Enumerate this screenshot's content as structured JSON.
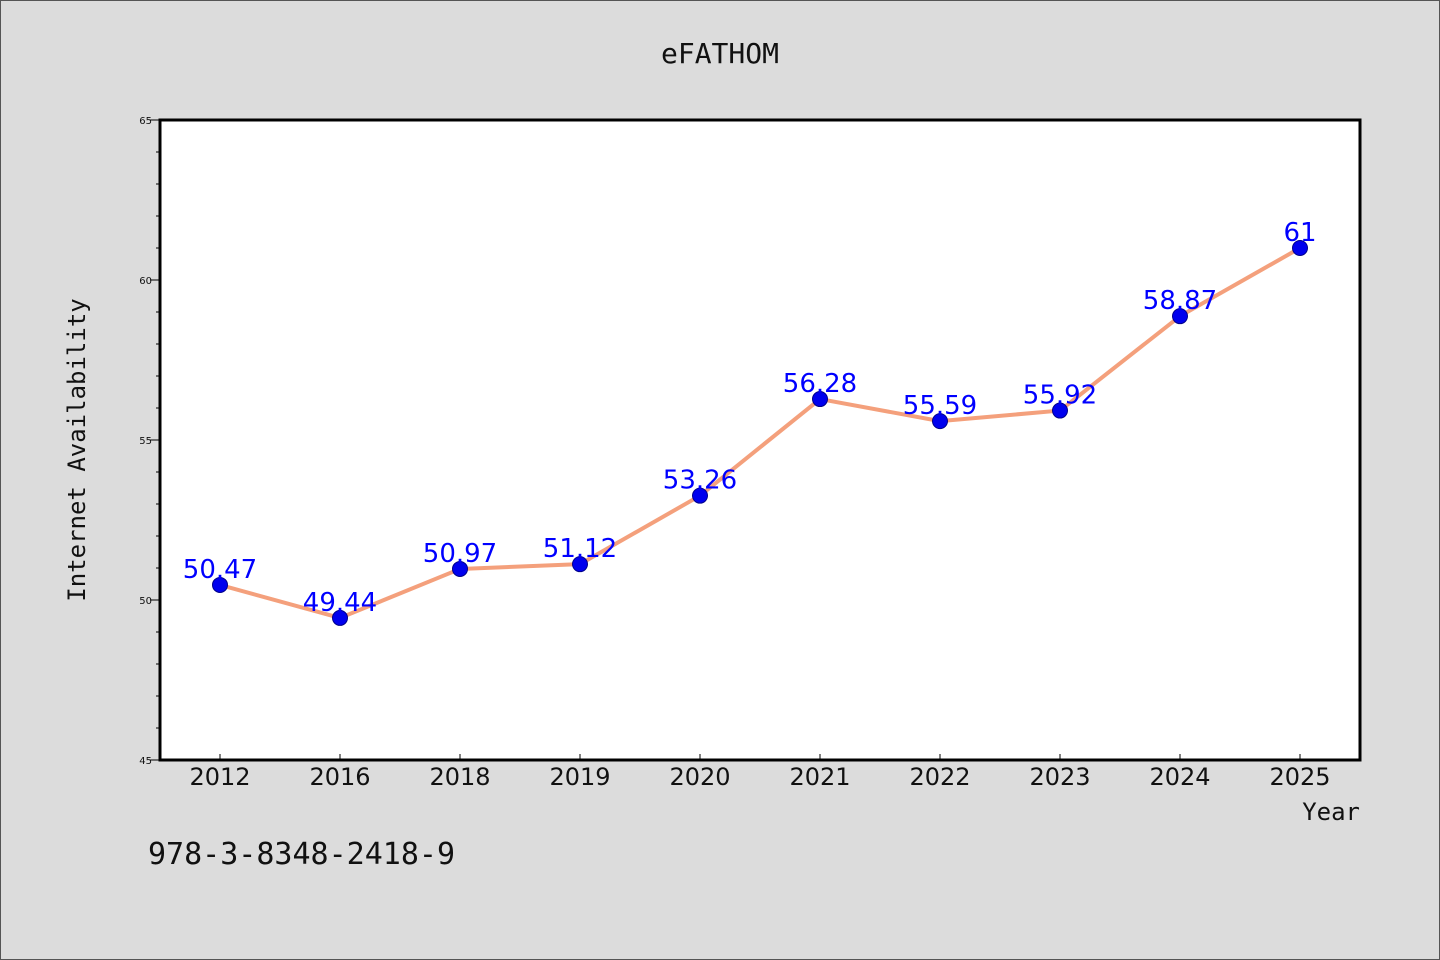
{
  "colors": {
    "background": "#dcdcdc",
    "plot_area": "#ffffff",
    "line": "#f4a07c",
    "marker": "#0000ee",
    "data_label": "#0000ff"
  },
  "footer": {
    "isbn": "978-3-8348-2418-9"
  },
  "chart_data": {
    "type": "line",
    "title": "eFATHOM",
    "xlabel": "Year",
    "ylabel": "Internet Availability",
    "categories": [
      "2012",
      "2016",
      "2018",
      "2019",
      "2020",
      "2021",
      "2022",
      "2023",
      "2024",
      "2025"
    ],
    "series": [
      {
        "values": [
          50.47,
          49.44,
          50.97,
          51.12,
          53.26,
          56.28,
          55.59,
          55.92,
          58.87,
          61
        ],
        "labels": [
          "50.47",
          "49.44",
          "50.97",
          "51.12",
          "53.26",
          "56.28",
          "55.59",
          "55.92",
          "58.87",
          "61"
        ]
      }
    ],
    "ylim": [
      45,
      65
    ],
    "yticks": [
      45,
      50,
      55,
      60,
      65
    ],
    "ytick_labels": [
      "45",
      "50",
      "55",
      "60",
      "65"
    ],
    "y_minor_step": 1,
    "grid": false,
    "legend": "none"
  }
}
